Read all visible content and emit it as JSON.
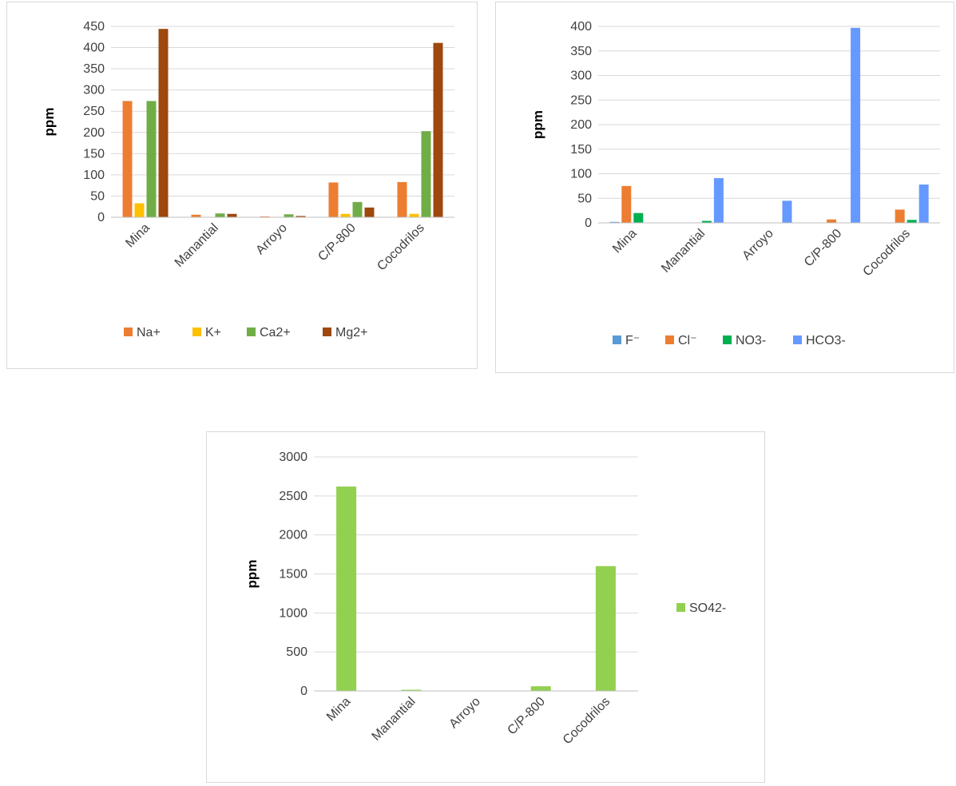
{
  "chart_data": [
    {
      "type": "bar",
      "ylabel": "ppm",
      "ylim": [
        0,
        450
      ],
      "yticks": [
        0,
        50,
        100,
        150,
        200,
        250,
        300,
        350,
        400,
        450
      ],
      "categories": [
        "Mina",
        "Manantial",
        "Arroyo",
        "C/P-800",
        "Cocodrilos"
      ],
      "legend_position": "bottom",
      "grid": true,
      "series": [
        {
          "name": "Na+",
          "color": "#ED7D31",
          "values": [
            274,
            6,
            2,
            82,
            83
          ]
        },
        {
          "name": "K+",
          "color": "#FFC000",
          "values": [
            33,
            1,
            1,
            8,
            8
          ]
        },
        {
          "name": "Ca2+",
          "color": "#70AD47",
          "values": [
            274,
            9,
            7,
            36,
            203
          ]
        },
        {
          "name": "Mg2+",
          "color": "#9E480E",
          "values": [
            444,
            8,
            3,
            23,
            411
          ]
        }
      ]
    },
    {
      "type": "bar",
      "ylabel": "ppm",
      "ylim": [
        0,
        400
      ],
      "yticks": [
        0,
        50,
        100,
        150,
        200,
        250,
        300,
        350,
        400
      ],
      "categories": [
        "Mina",
        "Manantial",
        "Arroyo",
        "C/P-800",
        "Cocodrilos"
      ],
      "legend_position": "bottom",
      "grid": true,
      "series": [
        {
          "name": "F⁻",
          "color": "#5B9BD5",
          "values": [
            2,
            0,
            0,
            0,
            0
          ]
        },
        {
          "name": "Cl⁻",
          "color": "#ED7D31",
          "values": [
            75,
            0,
            0,
            7,
            27
          ]
        },
        {
          "name": "NO3-",
          "color": "#00B050",
          "values": [
            20,
            4,
            0,
            0,
            6
          ]
        },
        {
          "name": "HCO3-",
          "color": "#6699FF",
          "values": [
            0,
            91,
            45,
            397,
            78
          ]
        }
      ]
    },
    {
      "type": "bar",
      "ylabel": "ppm",
      "ylim": [
        0,
        3000
      ],
      "yticks": [
        0,
        500,
        1000,
        1500,
        2000,
        2500,
        3000
      ],
      "categories": [
        "Mina",
        "Manantial",
        "Arroyo",
        "C/P-800",
        "Cocodrilos"
      ],
      "legend_position": "right",
      "grid": true,
      "series": [
        {
          "name": "SO42-",
          "color": "#92D050",
          "values": [
            2620,
            15,
            3,
            60,
            1600
          ]
        }
      ]
    }
  ]
}
